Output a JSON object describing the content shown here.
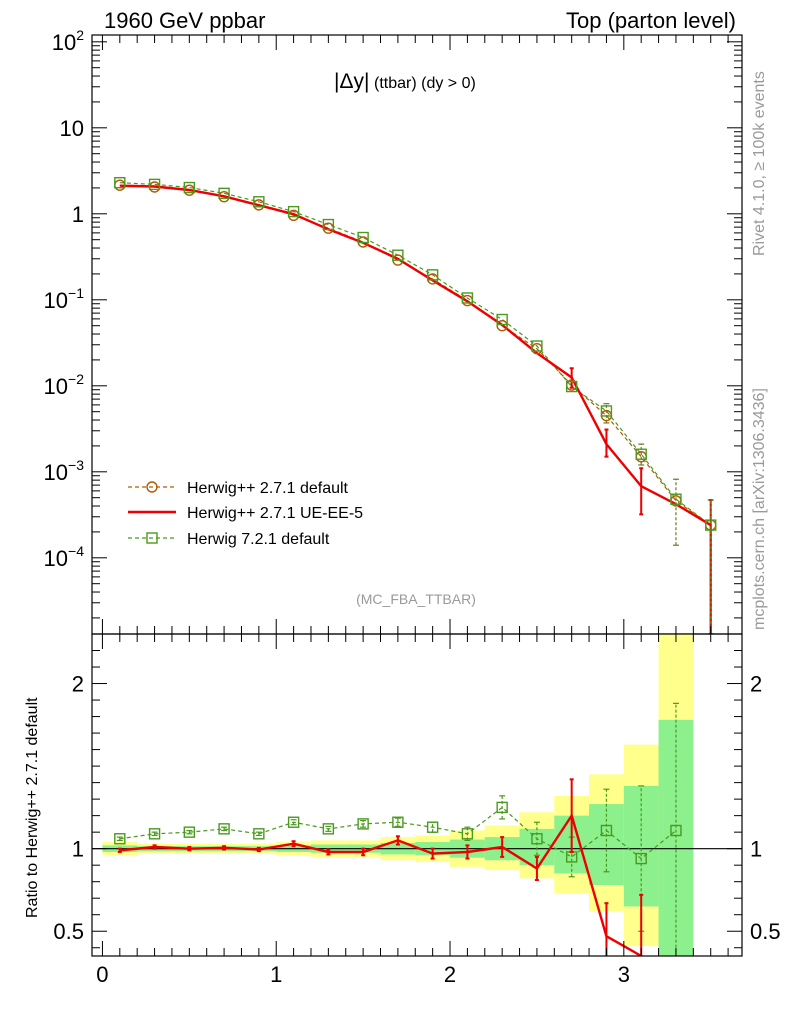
{
  "header": {
    "left": "1960 GeV ppbar",
    "right": "Top (parton level)"
  },
  "side_labels": {
    "rivet": "Rivet 4.1.0, ≥ 100k events",
    "mcplots": "mcplots.cern.ch [arXiv:1306.3436]"
  },
  "chart_data": [
    {
      "id": "main",
      "type": "line",
      "yscale": "log",
      "title_main": "|Δy|",
      "title_sub": "(ttbar) (dy > 0)",
      "watermark": "(MC_FBA_TTBAR)",
      "ylim": [
        1.3e-05,
        120
      ],
      "xlim": [
        -0.06,
        3.68
      ],
      "y_ticks": [
        {
          "v": 100,
          "base": "10",
          "exp": "2"
        },
        {
          "v": 10,
          "base": "10",
          "exp": ""
        },
        {
          "v": 1,
          "base": "1",
          "exp": ""
        },
        {
          "v": 0.1,
          "base": "10",
          "exp": "−1"
        },
        {
          "v": 0.01,
          "base": "10",
          "exp": "−2"
        },
        {
          "v": 0.001,
          "base": "10",
          "exp": "−3"
        },
        {
          "v": 0.0001,
          "base": "10",
          "exp": "−4"
        }
      ],
      "series": [
        {
          "name": "Herwig++ 2.7.1 default",
          "color": "#b35900",
          "style": "dashed-circle",
          "x": [
            0.1,
            0.3,
            0.5,
            0.7,
            0.9,
            1.1,
            1.3,
            1.5,
            1.7,
            1.9,
            2.1,
            2.3,
            2.5,
            2.7,
            2.9,
            3.1,
            3.3,
            3.5
          ],
          "values": [
            2.15,
            2.05,
            1.88,
            1.58,
            1.27,
            0.96,
            0.68,
            0.47,
            0.29,
            0.175,
            0.098,
            0.05,
            0.027,
            0.0102,
            0.0045,
            0.0015,
            0.00046,
            0.00024
          ]
        },
        {
          "name": "Herwig++ 2.7.1 UE-EE-5",
          "color": "#ee0000",
          "style": "solid",
          "x": [
            0.1,
            0.3,
            0.5,
            0.7,
            0.9,
            1.1,
            1.3,
            1.5,
            1.7,
            1.9,
            2.1,
            2.3,
            2.5,
            2.7,
            2.9,
            3.1,
            3.3,
            3.5
          ],
          "values": [
            2.12,
            2.08,
            1.89,
            1.6,
            1.26,
            0.99,
            0.66,
            0.46,
            0.3,
            0.168,
            0.096,
            0.051,
            0.024,
            0.0125,
            0.0021,
            0.00068,
            0.00042,
            0.00024
          ]
        },
        {
          "name": "Herwig 7.2.1 default",
          "color": "#4a9a1e",
          "style": "dashed-square",
          "x": [
            0.1,
            0.3,
            0.5,
            0.7,
            0.9,
            1.1,
            1.3,
            1.5,
            1.7,
            1.9,
            2.1,
            2.3,
            2.5,
            2.7,
            2.9,
            3.1,
            3.3,
            3.5
          ],
          "values": [
            2.3,
            2.2,
            2.02,
            1.73,
            1.38,
            1.06,
            0.75,
            0.53,
            0.33,
            0.195,
            0.105,
            0.059,
            0.029,
            0.0098,
            0.0051,
            0.0016,
            0.00048,
            0.00024
          ]
        }
      ]
    },
    {
      "id": "ratio",
      "type": "line",
      "ylabel": "Ratio to Herwig++ 2.7.1 default",
      "ylim": [
        0.35,
        2.3
      ],
      "xlim": [
        -0.06,
        3.68
      ],
      "y_ticks": [
        0.5,
        1,
        2
      ],
      "y_tick_labels": [
        "0.5",
        "1",
        "2"
      ],
      "x_ticks": [
        0,
        1,
        2,
        3
      ],
      "x_tick_labels": [
        "0",
        "1",
        "2",
        "3"
      ],
      "band_edges": [
        0,
        0.2,
        0.4,
        0.6,
        0.8,
        1.0,
        1.2,
        1.4,
        1.6,
        1.8,
        2.0,
        2.2,
        2.4,
        2.6,
        2.8,
        3.0,
        3.2,
        3.4
      ],
      "band_yellow": [
        [
          0.96,
          1.04
        ],
        [
          0.97,
          1.03
        ],
        [
          0.97,
          1.03
        ],
        [
          0.97,
          1.03
        ],
        [
          0.97,
          1.03
        ],
        [
          0.96,
          1.04
        ],
        [
          0.95,
          1.05
        ],
        [
          0.95,
          1.05
        ],
        [
          0.93,
          1.07
        ],
        [
          0.92,
          1.08
        ],
        [
          0.89,
          1.11
        ],
        [
          0.87,
          1.14
        ],
        [
          0.82,
          1.22
        ],
        [
          0.73,
          1.32
        ],
        [
          0.62,
          1.45
        ],
        [
          0.41,
          1.63
        ],
        [
          0.35,
          2.3
        ]
      ],
      "band_green": [
        [
          0.98,
          1.02
        ],
        [
          0.985,
          1.015
        ],
        [
          0.985,
          1.015
        ],
        [
          0.985,
          1.015
        ],
        [
          0.985,
          1.015
        ],
        [
          0.98,
          1.02
        ],
        [
          0.975,
          1.025
        ],
        [
          0.975,
          1.025
        ],
        [
          0.965,
          1.035
        ],
        [
          0.96,
          1.04
        ],
        [
          0.945,
          1.055
        ],
        [
          0.93,
          1.07
        ],
        [
          0.9,
          1.12
        ],
        [
          0.85,
          1.2
        ],
        [
          0.78,
          1.27
        ],
        [
          0.65,
          1.38
        ],
        [
          0.35,
          1.78
        ]
      ],
      "series": [
        {
          "name": "Herwig++ 2.7.1 UE-EE-5",
          "color": "#ee0000",
          "x": [
            0.1,
            0.3,
            0.5,
            0.7,
            0.9,
            1.1,
            1.3,
            1.5,
            1.7,
            1.9,
            2.1,
            2.3,
            2.5,
            2.7,
            2.9,
            3.1
          ],
          "values": [
            0.99,
            1.01,
            1.0,
            1.005,
            0.995,
            1.03,
            0.98,
            0.98,
            1.05,
            0.97,
            0.98,
            1.01,
            0.88,
            1.2,
            0.47,
            0.35
          ],
          "err": [
            0.01,
            0.01,
            0.01,
            0.01,
            0.01,
            0.015,
            0.015,
            0.02,
            0.025,
            0.03,
            0.04,
            0.06,
            0.07,
            0.22,
            0.2,
            0.37
          ]
        },
        {
          "name": "Herwig 7.2.1 default",
          "color": "#4a9a1e",
          "x": [
            0.1,
            0.3,
            0.5,
            0.7,
            0.9,
            1.1,
            1.3,
            1.5,
            1.7,
            1.9,
            2.1,
            2.3,
            2.5,
            2.7,
            2.9,
            3.1,
            3.3
          ],
          "values": [
            1.06,
            1.09,
            1.1,
            1.12,
            1.09,
            1.16,
            1.12,
            1.15,
            1.16,
            1.13,
            1.09,
            1.25,
            1.06,
            0.95,
            1.11,
            0.94,
            1.11
          ],
          "err": [
            0.01,
            0.01,
            0.01,
            0.01,
            0.01,
            0.015,
            0.015,
            0.02,
            0.025,
            0.03,
            0.04,
            0.07,
            0.1,
            0.12,
            0.25,
            0.44,
            0.77
          ]
        }
      ]
    }
  ]
}
